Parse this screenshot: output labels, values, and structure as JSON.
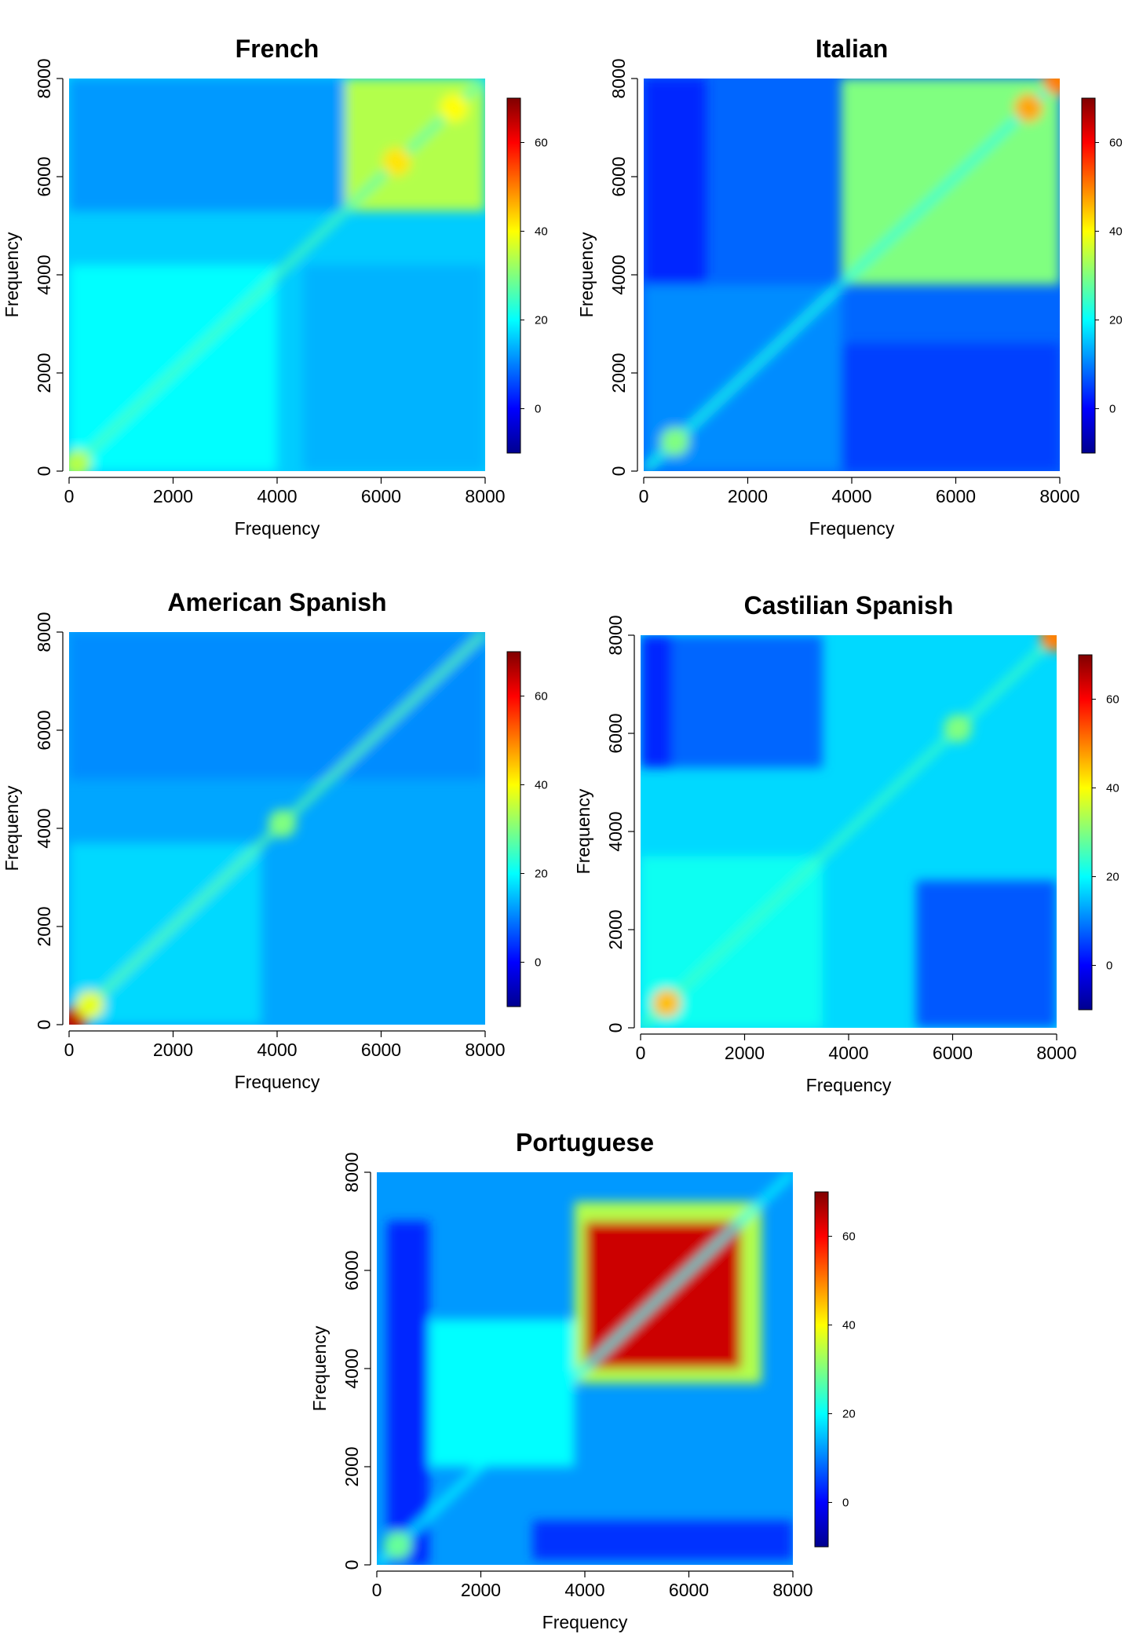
{
  "chart_data": [
    {
      "type": "heatmap",
      "title": "French",
      "xlabel": "Frequency",
      "ylabel": "Frequency",
      "xlim": [
        0,
        8000
      ],
      "ylim": [
        0,
        8000
      ],
      "x_ticks": [
        "0",
        "2000",
        "4000",
        "6000",
        "8000"
      ],
      "y_ticks": [
        "0",
        "2000",
        "4000",
        "6000",
        "8000"
      ],
      "colorbar": {
        "range": [
          -10,
          70
        ],
        "ticks": [
          "0",
          "20",
          "40",
          "60"
        ],
        "palette": "jet"
      },
      "base_value": 16,
      "blocks": [
        {
          "x": [
            5300,
            8000
          ],
          "y": [
            5300,
            8000
          ],
          "value": 34
        },
        {
          "x": [
            0,
            4000
          ],
          "y": [
            0,
            4200
          ],
          "value": 20
        },
        {
          "x": [
            4500,
            8000
          ],
          "y": [
            0,
            4200
          ],
          "value": 14
        },
        {
          "x": [
            0,
            5300
          ],
          "y": [
            5300,
            8000
          ],
          "value": 12
        }
      ],
      "diagonal_value": 26,
      "hotspots": [
        {
          "x": 6300,
          "y": 6300,
          "value": 42
        },
        {
          "x": 7400,
          "y": 7400,
          "value": 40
        },
        {
          "x": 150,
          "y": 150,
          "value": 34
        }
      ]
    },
    {
      "type": "heatmap",
      "title": "Italian",
      "xlabel": "Frequency",
      "ylabel": "Frequency",
      "xlim": [
        0,
        8000
      ],
      "ylim": [
        0,
        8000
      ],
      "x_ticks": [
        "0",
        "2000",
        "4000",
        "6000",
        "8000"
      ],
      "y_ticks": [
        "0",
        "2000",
        "4000",
        "6000",
        "8000"
      ],
      "colorbar": {
        "range": [
          -10,
          70
        ],
        "ticks": [
          "0",
          "20",
          "40",
          "60"
        ],
        "palette": "jet"
      },
      "base_value": 8,
      "blocks": [
        {
          "x": [
            3800,
            8000
          ],
          "y": [
            3800,
            8000
          ],
          "value": 30
        },
        {
          "x": [
            0,
            3800
          ],
          "y": [
            0,
            3800
          ],
          "value": 11
        },
        {
          "x": [
            0,
            1200
          ],
          "y": [
            3800,
            8000
          ],
          "value": 3
        },
        {
          "x": [
            3800,
            8000
          ],
          "y": [
            0,
            2600
          ],
          "value": 5
        }
      ],
      "diagonal_value": 22,
      "hotspots": [
        {
          "x": 7400,
          "y": 7400,
          "value": 47
        },
        {
          "x": 600,
          "y": 600,
          "value": 30
        },
        {
          "x": 7950,
          "y": 7950,
          "value": 50
        }
      ]
    },
    {
      "type": "heatmap",
      "title": "American Spanish",
      "xlabel": "Frequency",
      "ylabel": "Frequency",
      "xlim": [
        0,
        8000
      ],
      "ylim": [
        0,
        8000
      ],
      "x_ticks": [
        "0",
        "2000",
        "4000",
        "6000",
        "8000"
      ],
      "y_ticks": [
        "0",
        "2000",
        "4000",
        "6000",
        "8000"
      ],
      "colorbar": {
        "range": [
          -10,
          70
        ],
        "ticks": [
          "0",
          "20",
          "40",
          "60"
        ],
        "palette": "jet"
      },
      "base_value": 13,
      "blocks": [
        {
          "x": [
            0,
            3700
          ],
          "y": [
            0,
            3700
          ],
          "value": 17
        },
        {
          "x": [
            0,
            8000
          ],
          "y": [
            5000,
            8000
          ],
          "value": 11
        }
      ],
      "diagonal_value": 27,
      "hotspots": [
        {
          "x": 100,
          "y": 100,
          "value": 65
        },
        {
          "x": 4100,
          "y": 4100,
          "value": 30
        },
        {
          "x": 400,
          "y": 400,
          "value": 38
        }
      ]
    },
    {
      "type": "heatmap",
      "title": "Castilian Spanish",
      "xlabel": "Frequency",
      "ylabel": "Frequency",
      "xlim": [
        0,
        8000
      ],
      "ylim": [
        0,
        8000
      ],
      "x_ticks": [
        "0",
        "2000",
        "4000",
        "6000",
        "8000"
      ],
      "y_ticks": [
        "0",
        "2000",
        "4000",
        "6000",
        "8000"
      ],
      "colorbar": {
        "range": [
          -10,
          70
        ],
        "ticks": [
          "0",
          "20",
          "40",
          "60"
        ],
        "palette": "jet"
      },
      "base_value": 17,
      "blocks": [
        {
          "x": [
            0,
            3500
          ],
          "y": [
            5300,
            8000
          ],
          "value": 8
        },
        {
          "x": [
            0,
            600
          ],
          "y": [
            5300,
            8000
          ],
          "value": 3
        },
        {
          "x": [
            5300,
            8000
          ],
          "y": [
            0,
            3000
          ],
          "value": 7
        },
        {
          "x": [
            0,
            3500
          ],
          "y": [
            0,
            3500
          ],
          "value": 21
        }
      ],
      "diagonal_value": 25,
      "hotspots": [
        {
          "x": 500,
          "y": 500,
          "value": 45
        },
        {
          "x": 6100,
          "y": 6100,
          "value": 30
        },
        {
          "x": 7950,
          "y": 7950,
          "value": 50
        }
      ]
    },
    {
      "type": "heatmap",
      "title": "Portuguese",
      "xlabel": "Frequency",
      "ylabel": "Frequency",
      "xlim": [
        0,
        8000
      ],
      "ylim": [
        0,
        8000
      ],
      "x_ticks": [
        "0",
        "2000",
        "4000",
        "6000",
        "8000"
      ],
      "y_ticks": [
        "0",
        "2000",
        "4000",
        "6000",
        "8000"
      ],
      "colorbar": {
        "range": [
          -10,
          70
        ],
        "ticks": [
          "0",
          "20",
          "40",
          "60"
        ],
        "palette": "jet"
      },
      "base_value": 12,
      "blocks": [
        {
          "x": [
            3800,
            7400
          ],
          "y": [
            3700,
            7400
          ],
          "value": 34
        },
        {
          "x": [
            4000,
            7000
          ],
          "y": [
            4000,
            7000
          ],
          "value": 64
        },
        {
          "x": [
            200,
            1000
          ],
          "y": [
            0,
            7000
          ],
          "value": 3
        },
        {
          "x": [
            3000,
            8000
          ],
          "y": [
            100,
            900
          ],
          "value": 4
        },
        {
          "x": [
            1000,
            3800
          ],
          "y": [
            2000,
            5000
          ],
          "value": 20
        }
      ],
      "diagonal_value": 20,
      "hotspots": [
        {
          "x": 400,
          "y": 400,
          "value": 28
        }
      ]
    }
  ]
}
